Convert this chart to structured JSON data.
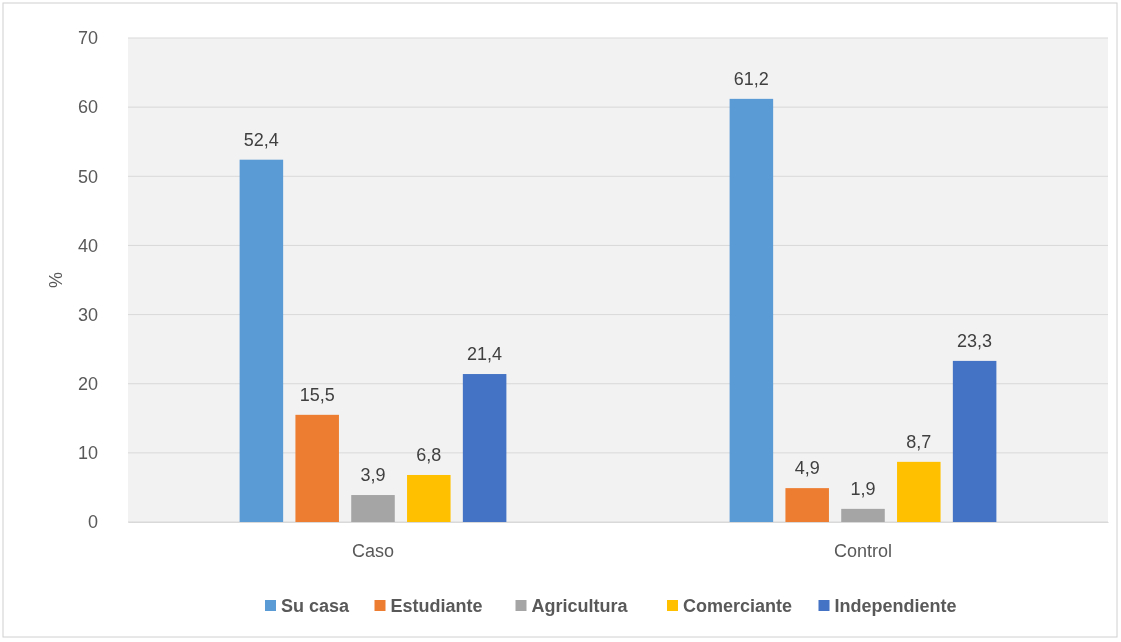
{
  "chart_data": {
    "type": "bar",
    "ylabel": "%",
    "categories": [
      "Caso",
      "Control"
    ],
    "series": [
      {
        "name": "Su casa",
        "color": "#5b9bd5",
        "values": [
          52.4,
          61.2
        ],
        "value_labels": [
          "52,4",
          "61,2"
        ]
      },
      {
        "name": "Estudiante",
        "color": "#ed7d31",
        "values": [
          15.5,
          4.9
        ],
        "value_labels": [
          "15,5",
          "4,9"
        ]
      },
      {
        "name": "Agricultura",
        "color": "#a5a5a5",
        "values": [
          3.9,
          1.9
        ],
        "value_labels": [
          "3,9",
          "1,9"
        ]
      },
      {
        "name": "Comerciante",
        "color": "#ffc000",
        "values": [
          6.8,
          8.7
        ],
        "value_labels": [
          "6,8",
          "8,7"
        ]
      },
      {
        "name": "Independiente",
        "color": "#4472c4",
        "values": [
          21.4,
          23.3
        ],
        "value_labels": [
          "21,4",
          "23,3"
        ]
      }
    ],
    "ylim": [
      0,
      70
    ],
    "yticks": [
      0,
      10,
      20,
      30,
      40,
      50,
      60,
      70
    ],
    "grid": "y",
    "legend": "bottom"
  }
}
